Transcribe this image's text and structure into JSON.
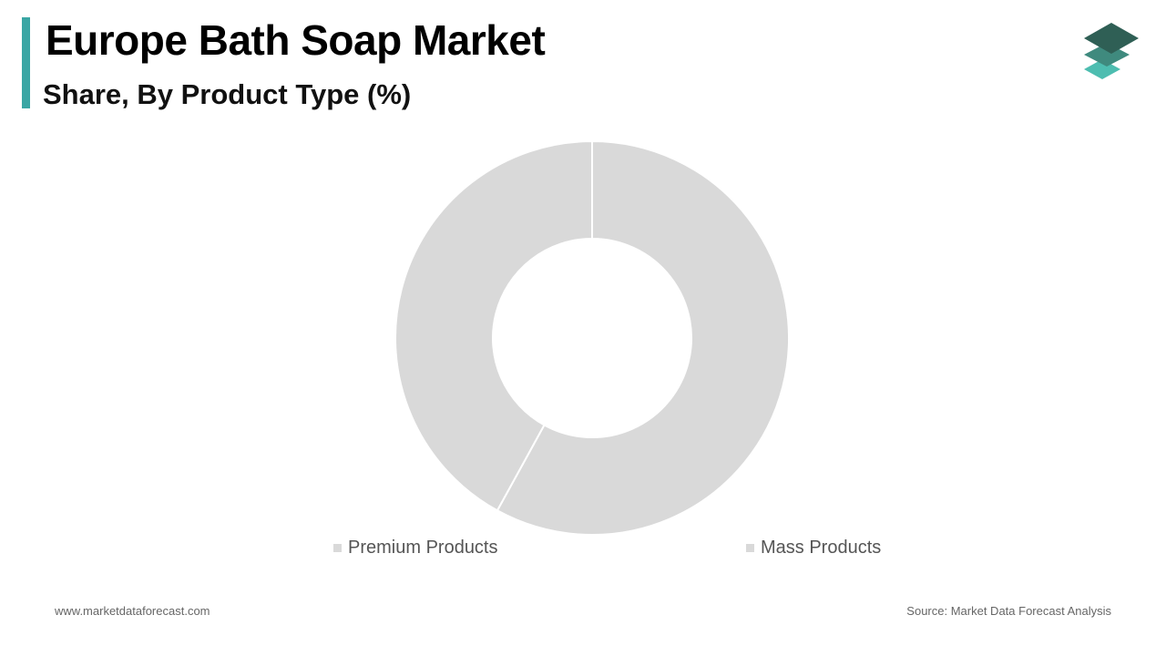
{
  "header": {
    "title": "Europe Bath Soap Market",
    "subtitle": "Share, By Product Type (%)"
  },
  "colors": {
    "accent": "#3aa6a4",
    "slice": "#d9d9d9",
    "slice_border": "#ffffff",
    "logo_top": "#2f5f55",
    "logo_mid": "#3f8a7e",
    "logo_bottom": "#4dbdb0"
  },
  "logo": {
    "icon": "stacked-layers-icon"
  },
  "chart_data": {
    "type": "pie",
    "variant": "donut",
    "categories": [
      "Premium Products",
      "Mass Products"
    ],
    "values": [
      42,
      58
    ],
    "legend_position": "bottom",
    "grid": false
  },
  "legend": {
    "items": [
      {
        "label": "Premium Products"
      },
      {
        "label": "Mass Products"
      }
    ]
  },
  "footer": {
    "website": "www.marketdataforecast.com",
    "source": "Source: Market Data Forecast Analysis"
  }
}
